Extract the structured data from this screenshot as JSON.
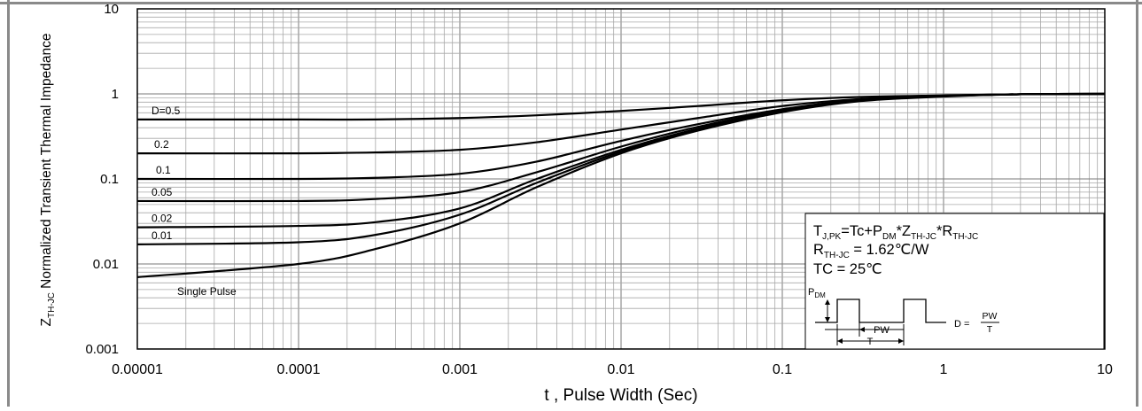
{
  "chart_data": {
    "type": "line",
    "x_scale": "log",
    "y_scale": "log",
    "xlim": [
      1e-05,
      10
    ],
    "ylim": [
      0.001,
      10
    ],
    "grid": true,
    "xlabel": "t , Pulse Width (Sec)",
    "ylabel": {
      "prefix": "Z",
      "subscript": "TH-JC",
      "rest": " Normalized Transient Thermal Impedance"
    },
    "x_ticks": [
      {
        "value": 1e-05,
        "label": "0.00001"
      },
      {
        "value": 0.0001,
        "label": "0.0001"
      },
      {
        "value": 0.001,
        "label": "0.001"
      },
      {
        "value": 0.01,
        "label": "0.01"
      },
      {
        "value": 0.1,
        "label": "0.1"
      },
      {
        "value": 1,
        "label": "1"
      },
      {
        "value": 10,
        "label": "10"
      }
    ],
    "y_ticks": [
      {
        "value": 0.001,
        "label": "0.001"
      },
      {
        "value": 0.01,
        "label": "0.01"
      },
      {
        "value": 0.1,
        "label": "0.1"
      },
      {
        "value": 1,
        "label": "1"
      },
      {
        "value": 10,
        "label": "10"
      }
    ],
    "x": [
      1e-05,
      0.0001,
      0.0003,
      0.001,
      0.003,
      0.01,
      0.03,
      0.1,
      0.3,
      1,
      3,
      10
    ],
    "series": [
      {
        "name": "D=0.5",
        "values": [
          0.5,
          0.5,
          0.5,
          0.52,
          0.56,
          0.63,
          0.72,
          0.84,
          0.92,
          0.96,
          0.99,
          1.0
        ]
      },
      {
        "name": "0.2",
        "values": [
          0.2,
          0.2,
          0.205,
          0.22,
          0.27,
          0.38,
          0.52,
          0.72,
          0.87,
          0.95,
          0.99,
          1.0
        ]
      },
      {
        "name": "0.1",
        "values": [
          0.1,
          0.1,
          0.103,
          0.115,
          0.16,
          0.28,
          0.44,
          0.66,
          0.85,
          0.94,
          0.99,
          1.0
        ]
      },
      {
        "name": "0.05",
        "values": [
          0.055,
          0.055,
          0.058,
          0.07,
          0.12,
          0.24,
          0.41,
          0.64,
          0.84,
          0.94,
          0.99,
          1.0
        ]
      },
      {
        "name": "0.02",
        "values": [
          0.027,
          0.028,
          0.031,
          0.045,
          0.1,
          0.22,
          0.39,
          0.63,
          0.83,
          0.94,
          0.99,
          1.0
        ]
      },
      {
        "name": "0.01",
        "values": [
          0.017,
          0.018,
          0.022,
          0.038,
          0.09,
          0.21,
          0.38,
          0.62,
          0.83,
          0.94,
          0.99,
          1.0
        ]
      },
      {
        "name": "Single Pulse",
        "values": [
          0.007,
          0.01,
          0.015,
          0.03,
          0.08,
          0.2,
          0.37,
          0.61,
          0.82,
          0.93,
          0.99,
          1.0
        ]
      }
    ],
    "annotation": {
      "line1": {
        "a": "T",
        "a_sub": "J,PK",
        "b": "=Tc+P",
        "b_sub": "DM",
        "c": "*Z",
        "c_sub": "TH-JC",
        "d": "*R",
        "d_sub": "TH-JC"
      },
      "line2": {
        "a": "R",
        "a_sub": "TH-JC",
        "b": " = 1.62℃/W"
      },
      "line3": "TC = 25℃",
      "pdm": {
        "a": "P",
        "a_sub": "DM"
      },
      "pw": "PW",
      "t": "T",
      "duty": {
        "lhs": "D = ",
        "num": "PW",
        "den": "T"
      }
    }
  }
}
